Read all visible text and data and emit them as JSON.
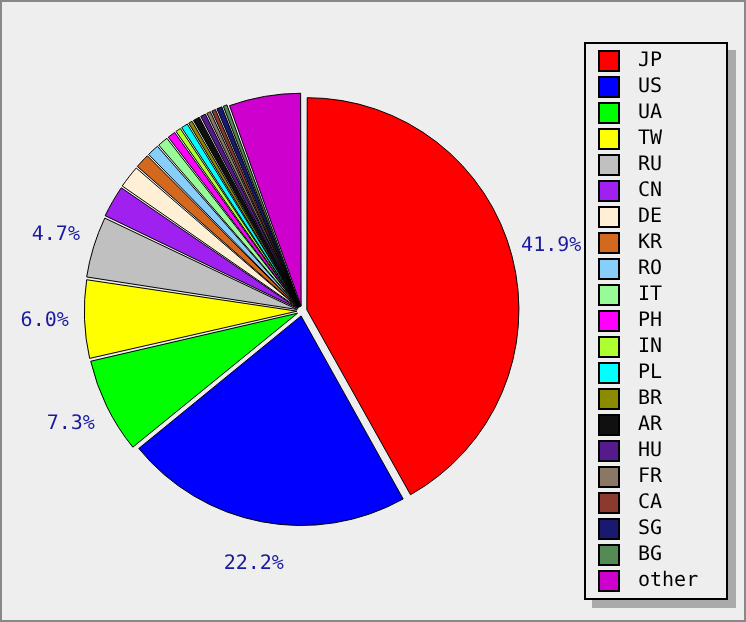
{
  "chart_data": {
    "type": "pie",
    "categories": [
      "JP",
      "US",
      "UA",
      "TW",
      "RU",
      "CN",
      "DE",
      "KR",
      "RO",
      "IT",
      "PH",
      "IN",
      "PL",
      "BR",
      "AR",
      "HU",
      "FR",
      "CA",
      "SG",
      "BG",
      "other"
    ],
    "values": [
      41.9,
      22.2,
      7.3,
      6.0,
      4.7,
      2.5,
      1.8,
      1.2,
      1.0,
      0.9,
      0.7,
      0.5,
      0.6,
      0.4,
      0.6,
      0.5,
      0.4,
      0.4,
      0.5,
      0.4,
      5.5
    ],
    "colors": [
      "#ff0000",
      "#0000ff",
      "#00ff00",
      "#ffff00",
      "#c0c0c0",
      "#a020f0",
      "#ffefd5",
      "#d2691e",
      "#87cefa",
      "#98fb98",
      "#ff00ff",
      "#adff2f",
      "#00ffff",
      "#8b8b00",
      "#101010",
      "#551a8b",
      "#8b7765",
      "#8b3a2e",
      "#191970",
      "#548b54",
      "#cd00cd"
    ],
    "value_labels": [
      "41.9%",
      "22.2%",
      "7.3%",
      "6.0%",
      "4.7%",
      null,
      null,
      null,
      null,
      null,
      null,
      null,
      null,
      null,
      null,
      null,
      null,
      null,
      null,
      null,
      null
    ],
    "legend": "right"
  }
}
